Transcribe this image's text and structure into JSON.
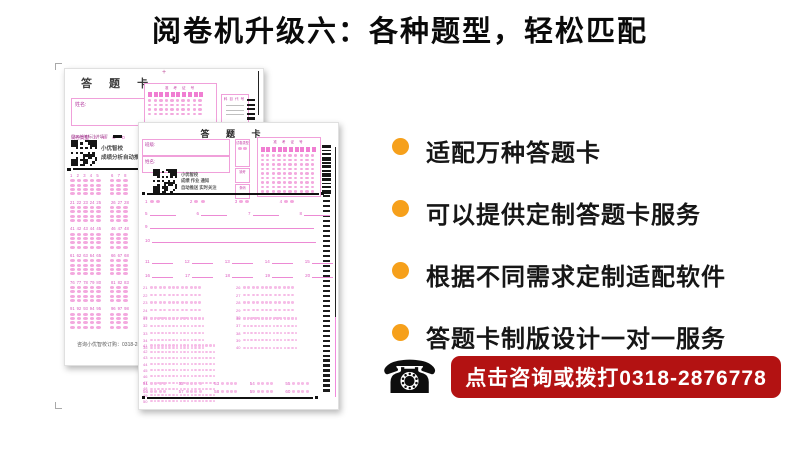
{
  "page": {
    "title": "阅卷机升级六：各种题型，轻松匹配"
  },
  "features": {
    "bullet_color": "#F6A01B",
    "items": [
      "适配万种答题卡",
      "可以提供定制答题卡服务",
      "根据不同需求定制适配软件",
      "答题卡制版设计一对一服务"
    ]
  },
  "cta": {
    "phone_icon": "☎",
    "label": "点击咨询或拨打0318-2876778",
    "bg": "#B31212"
  },
  "sheet_back": {
    "title": "答 题 卡",
    "corner_plus": "+",
    "name_label": "姓名:",
    "exam_no_label": "准 考 证 号",
    "subject_label": "科目代号",
    "paper_type_label": "试卷类型",
    "paper_type_options": "A B C D",
    "pencil_note": "用2B铅笔标注并填写",
    "qr_caption_1": "小优智校",
    "qr_caption_2": "成绩分析自动推送",
    "footer": "咨询小优智校订购：0318-28",
    "answer_group_starts": [
      1,
      21,
      41,
      61,
      76,
      91
    ],
    "cols_per_group": 8,
    "option_rows": 4,
    "exam_grid": {
      "cols": 10,
      "rows": 4
    },
    "barcode_dashes": 5
  },
  "sheet_front": {
    "title": "答 题 卡",
    "class_label": "班级:",
    "name_label": "姓名:",
    "side_box_labels": [
      "试卷类型",
      "缺考",
      "条码"
    ],
    "exam_no_label": "准 考 证 号",
    "qr_caption_1": "小优智校",
    "qr_caption_2": "成绩 作业 通知",
    "qr_caption_3": "自动推送 实时关注",
    "tf_questions": [
      1,
      2,
      3,
      4
    ],
    "tf_option_count": 2,
    "short_blanks": [
      5,
      6,
      7,
      8
    ],
    "long_blanks": [
      9,
      10
    ],
    "med_blank_rows": [
      [
        11,
        12,
        13,
        14,
        15
      ],
      [
        16,
        17,
        18,
        19,
        20
      ]
    ],
    "block_a": {
      "left_start": 21,
      "right_start": 26,
      "rows": 5,
      "bubbles": 12
    },
    "block_b": {
      "left_start": 31,
      "right_start": 36,
      "rows": 5,
      "bubbles": 15
    },
    "block_c": {
      "start": 41,
      "rows": 10,
      "bubbles": 18
    },
    "group_rows": {
      "starts": [
        51,
        56
      ],
      "groups": 5,
      "bubbles": 4
    },
    "exam_grid": {
      "cols": 10,
      "rows": 9
    },
    "barcode_stripes": 12,
    "timing_marks": 40
  }
}
